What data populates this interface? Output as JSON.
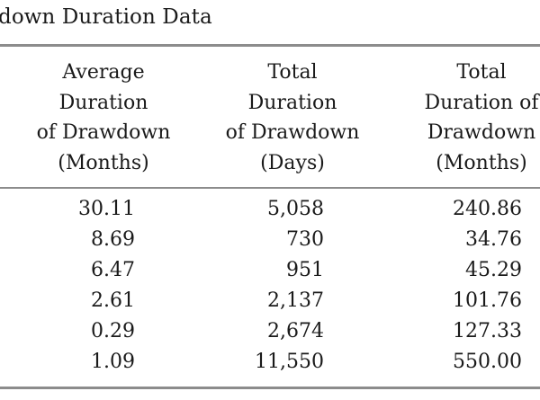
{
  "table": {
    "title": "down Duration Data",
    "headers": [
      [
        "Average",
        "Duration",
        "of Drawdown",
        "(Months)"
      ],
      [
        "Total",
        "Duration",
        "of Drawdown",
        "(Days)"
      ],
      [
        "Total",
        "Duration of",
        "Drawdown",
        "(Months)"
      ]
    ],
    "rows": [
      [
        "30.11",
        "5,058",
        "240.86"
      ],
      [
        "8.69",
        "730",
        "34.76"
      ],
      [
        "6.47",
        "951",
        "45.29"
      ],
      [
        "2.61",
        "2,137",
        "101.76"
      ],
      [
        "0.29",
        "2,674",
        "127.33"
      ],
      [
        "1.09",
        "11,550",
        "550.00"
      ]
    ]
  }
}
